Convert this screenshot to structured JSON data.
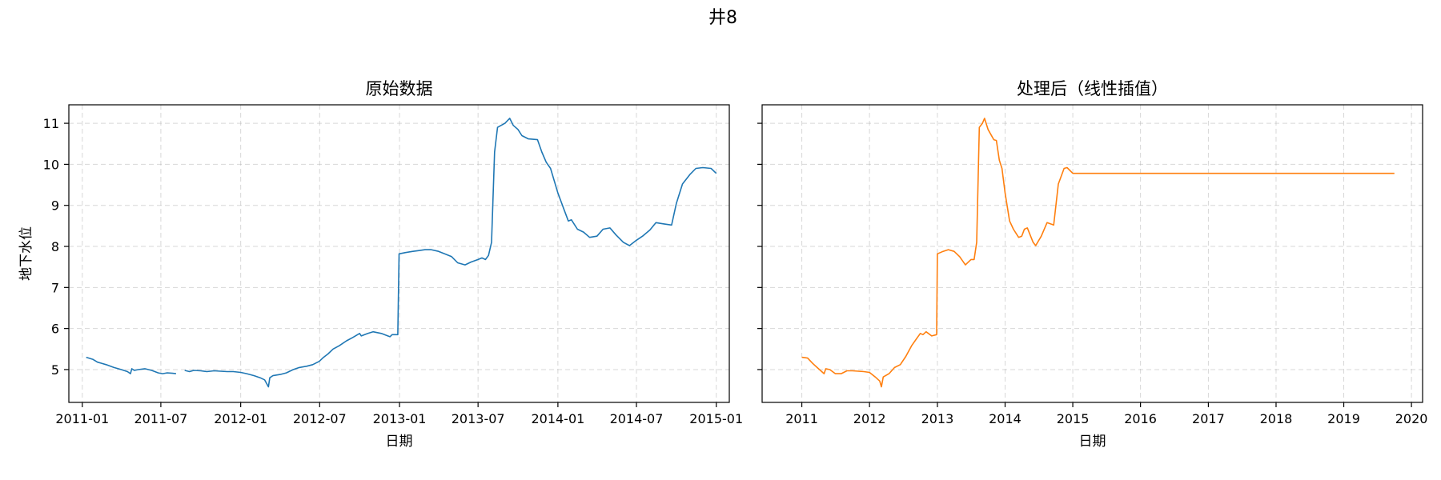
{
  "figure": {
    "suptitle": "井8"
  },
  "chart_data": [
    {
      "type": "line",
      "title": "原始数据",
      "xlabel": "日期",
      "ylabel": "地下水位",
      "x_axis_type": "date",
      "xlim": [
        "2010-12-01",
        "2015-01-31"
      ],
      "ylim": [
        4.2,
        11.45
      ],
      "xticks": [
        "2011-01-01",
        "2011-07-01",
        "2012-01-01",
        "2012-07-01",
        "2013-01-01",
        "2013-07-01",
        "2014-01-01",
        "2014-07-01",
        "2015-01-01"
      ],
      "xtick_labels": [
        "2011-01",
        "2011-07",
        "2012-01",
        "2012-07",
        "2013-01",
        "2013-07",
        "2014-01",
        "2014-07",
        "2015-01"
      ],
      "yticks": [
        5,
        6,
        7,
        8,
        9,
        10,
        11
      ],
      "grid": true,
      "color": "#1f77b4",
      "series": [
        {
          "segments": [
            [
              [
                "2011-01-10",
                5.3
              ],
              [
                "2011-01-25",
                5.25
              ],
              [
                "2011-02-05",
                5.18
              ],
              [
                "2011-02-25",
                5.12
              ],
              [
                "2011-03-15",
                5.05
              ],
              [
                "2011-04-01",
                5.0
              ],
              [
                "2011-04-15",
                4.95
              ],
              [
                "2011-04-22",
                4.9
              ],
              [
                "2011-04-25",
                5.02
              ],
              [
                "2011-05-01",
                4.98
              ],
              [
                "2011-05-10",
                5.0
              ],
              [
                "2011-05-25",
                5.02
              ],
              [
                "2011-06-10",
                4.98
              ],
              [
                "2011-06-25",
                4.92
              ],
              [
                "2011-07-05",
                4.9
              ],
              [
                "2011-07-15",
                4.92
              ],
              [
                "2011-07-28",
                4.91
              ],
              [
                "2011-08-05",
                4.9
              ]
            ],
            [
              [
                "2011-08-25",
                4.98
              ],
              [
                "2011-09-05",
                4.95
              ],
              [
                "2011-09-15",
                4.98
              ],
              [
                "2011-10-01",
                4.97
              ],
              [
                "2011-10-15",
                4.95
              ],
              [
                "2011-11-01",
                4.97
              ],
              [
                "2011-11-15",
                4.96
              ],
              [
                "2011-12-01",
                4.95
              ],
              [
                "2011-12-15",
                4.95
              ],
              [
                "2012-01-01",
                4.93
              ],
              [
                "2012-01-15",
                4.9
              ],
              [
                "2012-02-01",
                4.85
              ],
              [
                "2012-02-15",
                4.8
              ],
              [
                "2012-02-25",
                4.75
              ],
              [
                "2012-03-05",
                4.58
              ],
              [
                "2012-03-08",
                4.8
              ],
              [
                "2012-03-15",
                4.85
              ],
              [
                "2012-04-01",
                4.88
              ],
              [
                "2012-04-15",
                4.92
              ],
              [
                "2012-05-01",
                5.0
              ],
              [
                "2012-05-15",
                5.05
              ],
              [
                "2012-06-01",
                5.08
              ],
              [
                "2012-06-15",
                5.12
              ],
              [
                "2012-06-30",
                5.2
              ],
              [
                "2012-07-10",
                5.3
              ],
              [
                "2012-07-20",
                5.38
              ],
              [
                "2012-08-01",
                5.5
              ],
              [
                "2012-08-15",
                5.58
              ],
              [
                "2012-09-01",
                5.7
              ],
              [
                "2012-09-15",
                5.78
              ],
              [
                "2012-10-01",
                5.88
              ],
              [
                "2012-10-05",
                5.82
              ],
              [
                "2012-10-20",
                5.88
              ],
              [
                "2012-11-01",
                5.92
              ],
              [
                "2012-11-20",
                5.88
              ],
              [
                "2012-12-05",
                5.82
              ],
              [
                "2012-12-10",
                5.8
              ],
              [
                "2012-12-15",
                5.85
              ],
              [
                "2012-12-28",
                5.85
              ],
              [
                "2012-12-31",
                7.82
              ],
              [
                "2013-01-15",
                7.85
              ],
              [
                "2013-02-01",
                7.88
              ],
              [
                "2013-02-15",
                7.9
              ],
              [
                "2013-03-01",
                7.92
              ],
              [
                "2013-03-15",
                7.92
              ],
              [
                "2013-04-01",
                7.88
              ],
              [
                "2013-04-15",
                7.82
              ],
              [
                "2013-05-01",
                7.75
              ],
              [
                "2013-05-15",
                7.6
              ],
              [
                "2013-06-01",
                7.55
              ],
              [
                "2013-06-15",
                7.62
              ],
              [
                "2013-07-01",
                7.68
              ],
              [
                "2013-07-10",
                7.72
              ],
              [
                "2013-07-18",
                7.68
              ],
              [
                "2013-07-25",
                7.78
              ],
              [
                "2013-08-01",
                8.1
              ],
              [
                "2013-08-08",
                10.3
              ],
              [
                "2013-08-15",
                10.9
              ],
              [
                "2013-09-01",
                11.0
              ],
              [
                "2013-09-12",
                11.12
              ],
              [
                "2013-09-20",
                10.95
              ],
              [
                "2013-10-01",
                10.85
              ],
              [
                "2013-10-10",
                10.7
              ],
              [
                "2013-10-25",
                10.62
              ],
              [
                "2013-11-15",
                10.6
              ],
              [
                "2013-11-25",
                10.3
              ],
              [
                "2013-12-05",
                10.05
              ],
              [
                "2013-12-15",
                9.9
              ],
              [
                "2014-01-01",
                9.3
              ],
              [
                "2014-01-15",
                8.9
              ],
              [
                "2014-01-25",
                8.62
              ],
              [
                "2014-02-01",
                8.65
              ],
              [
                "2014-02-15",
                8.42
              ],
              [
                "2014-03-01",
                8.35
              ],
              [
                "2014-03-15",
                8.22
              ],
              [
                "2014-04-01",
                8.25
              ],
              [
                "2014-04-15",
                8.42
              ],
              [
                "2014-05-01",
                8.45
              ],
              [
                "2014-05-15",
                8.28
              ],
              [
                "2014-06-01",
                8.1
              ],
              [
                "2014-06-15",
                8.02
              ],
              [
                "2014-07-01",
                8.15
              ],
              [
                "2014-07-15",
                8.25
              ],
              [
                "2014-08-01",
                8.4
              ],
              [
                "2014-08-15",
                8.58
              ],
              [
                "2014-09-01",
                8.55
              ],
              [
                "2014-09-20",
                8.52
              ],
              [
                "2014-10-01",
                9.05
              ],
              [
                "2014-10-15",
                9.52
              ],
              [
                "2014-11-01",
                9.75
              ],
              [
                "2014-11-15",
                9.9
              ],
              [
                "2014-12-01",
                9.92
              ],
              [
                "2014-12-20",
                9.9
              ],
              [
                "2015-01-01",
                9.78
              ]
            ]
          ]
        }
      ]
    },
    {
      "type": "line",
      "title": "处理后（线性插值）",
      "xlabel": "日期",
      "ylabel": "",
      "x_axis_type": "date",
      "xlim": [
        "2010-06-01",
        "2020-03-01"
      ],
      "ylim": [
        4.2,
        11.45
      ],
      "xticks": [
        "2011-01-01",
        "2012-01-01",
        "2013-01-01",
        "2014-01-01",
        "2015-01-01",
        "2016-01-01",
        "2017-01-01",
        "2018-01-01",
        "2019-01-01",
        "2020-01-01"
      ],
      "xtick_labels": [
        "2011",
        "2012",
        "2013",
        "2014",
        "2015",
        "2016",
        "2017",
        "2018",
        "2019",
        "2020"
      ],
      "yticks": [
        5,
        6,
        7,
        8,
        9,
        10,
        11
      ],
      "show_ytick_labels": false,
      "grid": true,
      "color": "#ff7f0e",
      "series": [
        {
          "segments": [
            [
              [
                "2011-01-01",
                5.3
              ],
              [
                "2011-02-01",
                5.28
              ],
              [
                "2011-03-01",
                5.15
              ],
              [
                "2011-04-01",
                5.02
              ],
              [
                "2011-05-01",
                4.9
              ],
              [
                "2011-05-10",
                5.02
              ],
              [
                "2011-06-01",
                5.0
              ],
              [
                "2011-07-01",
                4.9
              ],
              [
                "2011-08-01",
                4.9
              ],
              [
                "2011-09-01",
                4.97
              ],
              [
                "2011-10-01",
                4.97
              ],
              [
                "2011-11-01",
                4.96
              ],
              [
                "2011-12-01",
                4.95
              ],
              [
                "2012-01-01",
                4.93
              ],
              [
                "2012-02-01",
                4.82
              ],
              [
                "2012-02-25",
                4.72
              ],
              [
                "2012-03-05",
                4.58
              ],
              [
                "2012-03-15",
                4.82
              ],
              [
                "2012-04-15",
                4.9
              ],
              [
                "2012-05-15",
                5.05
              ],
              [
                "2012-06-15",
                5.12
              ],
              [
                "2012-07-15",
                5.32
              ],
              [
                "2012-08-15",
                5.58
              ],
              [
                "2012-09-15",
                5.78
              ],
              [
                "2012-10-01",
                5.88
              ],
              [
                "2012-10-15",
                5.85
              ],
              [
                "2012-11-01",
                5.92
              ],
              [
                "2012-12-01",
                5.82
              ],
              [
                "2012-12-28",
                5.85
              ],
              [
                "2013-01-01",
                7.82
              ],
              [
                "2013-02-01",
                7.88
              ],
              [
                "2013-03-01",
                7.92
              ],
              [
                "2013-04-01",
                7.88
              ],
              [
                "2013-05-01",
                7.75
              ],
              [
                "2013-06-01",
                7.55
              ],
              [
                "2013-07-01",
                7.68
              ],
              [
                "2013-07-18",
                7.68
              ],
              [
                "2013-08-01",
                8.1
              ],
              [
                "2013-08-15",
                10.9
              ],
              [
                "2013-09-01",
                11.0
              ],
              [
                "2013-09-12",
                11.12
              ],
              [
                "2013-10-01",
                10.85
              ],
              [
                "2013-11-01",
                10.6
              ],
              [
                "2013-11-15",
                10.58
              ],
              [
                "2013-12-01",
                10.1
              ],
              [
                "2013-12-15",
                9.9
              ],
              [
                "2014-01-01",
                9.3
              ],
              [
                "2014-01-25",
                8.62
              ],
              [
                "2014-02-15",
                8.42
              ],
              [
                "2014-03-15",
                8.22
              ],
              [
                "2014-04-01",
                8.25
              ],
              [
                "2014-04-15",
                8.42
              ],
              [
                "2014-05-01",
                8.45
              ],
              [
                "2014-06-01",
                8.1
              ],
              [
                "2014-06-15",
                8.02
              ],
              [
                "2014-07-15",
                8.25
              ],
              [
                "2014-08-15",
                8.58
              ],
              [
                "2014-09-20",
                8.52
              ],
              [
                "2014-10-15",
                9.52
              ],
              [
                "2014-11-15",
                9.9
              ],
              [
                "2014-12-01",
                9.92
              ],
              [
                "2015-01-01",
                9.78
              ],
              [
                "2019-10-01",
                9.78
              ]
            ]
          ]
        }
      ]
    }
  ]
}
